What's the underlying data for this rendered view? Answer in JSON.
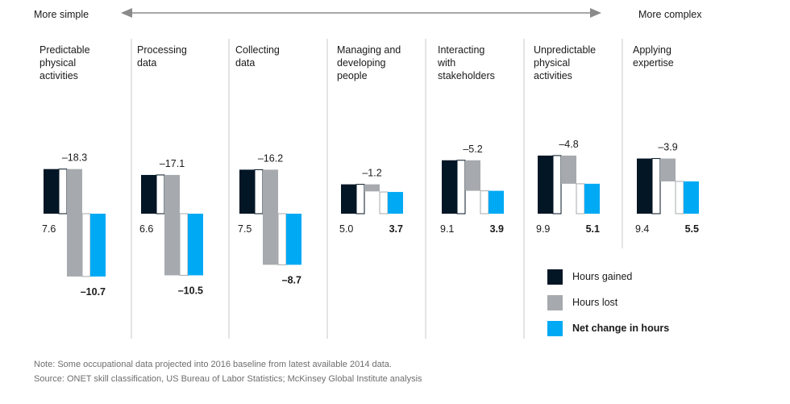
{
  "scale": {
    "left_label": "More simple",
    "right_label": "More complex"
  },
  "colors": {
    "gained": "#031625",
    "lost": "#a6aaae",
    "net": "#00a9f4",
    "divider": "#c8c8c8",
    "arrow": "#8a8a8a"
  },
  "chart_data": {
    "type": "bar",
    "subtype": "waterfall",
    "unit": "hours",
    "categories": [
      "Predictable physical activities",
      "Processing data",
      "Collecting data",
      "Managing and developing people",
      "Interacting with stakeholders",
      "Unpredictable physical activities",
      "Applying expertise"
    ],
    "category_lines": [
      [
        "Predictable",
        "physical",
        "activities"
      ],
      [
        "Processing",
        "data"
      ],
      [
        "Collecting",
        "data"
      ],
      [
        "Managing and",
        "developing",
        "people"
      ],
      [
        "Interacting",
        "with",
        "stakeholders"
      ],
      [
        "Unpredictable",
        "physical",
        "activities"
      ],
      [
        "Applying",
        "expertise"
      ]
    ],
    "series": [
      {
        "name": "Hours gained",
        "values": [
          7.6,
          6.6,
          7.5,
          5.0,
          9.1,
          9.9,
          9.4
        ]
      },
      {
        "name": "Hours lost",
        "values": [
          -18.3,
          -17.1,
          -16.2,
          -1.2,
          -5.2,
          -4.8,
          -3.9
        ]
      },
      {
        "name": "Net change in hours",
        "values": [
          -10.7,
          -10.5,
          -8.7,
          3.7,
          3.9,
          5.1,
          5.5
        ]
      }
    ],
    "gained_labels": [
      "7.6",
      "6.6",
      "7.5",
      "5.0",
      "9.1",
      "9.9",
      "9.4"
    ],
    "lost_labels": [
      "–18.3",
      "–17.1",
      "–16.2",
      "–1.2",
      "–5.2",
      "–4.8",
      "–3.9"
    ],
    "net_labels": [
      "–10.7",
      "–10.5",
      "–8.7",
      "3.7",
      "3.9",
      "5.1",
      "5.5"
    ],
    "grid": false,
    "legend_position": "bottom-right"
  },
  "legend": [
    {
      "label": "Hours gained",
      "color": "#031625",
      "bold": false
    },
    {
      "label": "Hours lost",
      "color": "#a6aaae",
      "bold": false
    },
    {
      "label": "Net change in hours",
      "color": "#00a9f4",
      "bold": true
    }
  ],
  "notes": {
    "note": "Note: Some occupational data projected into 2016 baseline from latest available 2014 data.",
    "source": "Source: ONET skill classification, US Bureau of Labor Statistics; McKinsey Global Institute analysis"
  }
}
